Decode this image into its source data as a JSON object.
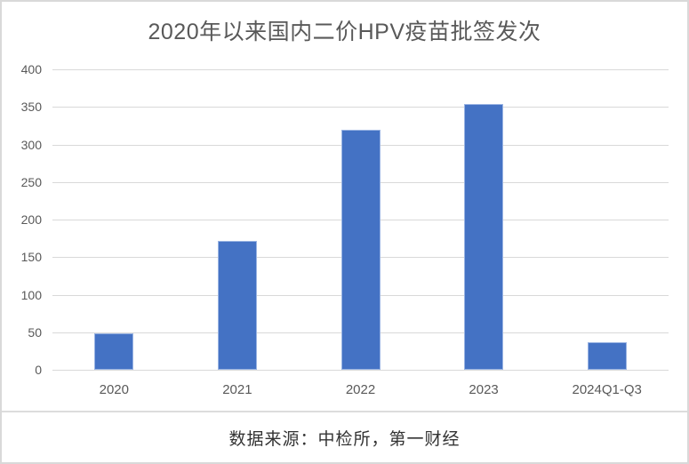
{
  "chart_data": {
    "type": "bar",
    "title": "2020年以来国内二价HPV疫苗批签发次",
    "categories": [
      "2020",
      "2021",
      "2022",
      "2023",
      "2024Q1-Q3"
    ],
    "values": [
      48,
      172,
      320,
      354,
      37
    ],
    "xlabel": "",
    "ylabel": "",
    "ylim": [
      0,
      400
    ],
    "yticks": [
      0,
      50,
      100,
      150,
      200,
      250,
      300,
      350,
      400
    ],
    "grid": true,
    "legend": false,
    "bar_color": "#4472c4",
    "bar_edge_color": "#9ab4e3",
    "gridline_color": "#d9d9d9",
    "tick_label_color": "#595959",
    "title_color": "#595959"
  },
  "footer": {
    "text": "数据来源：中检所，第一财经"
  }
}
